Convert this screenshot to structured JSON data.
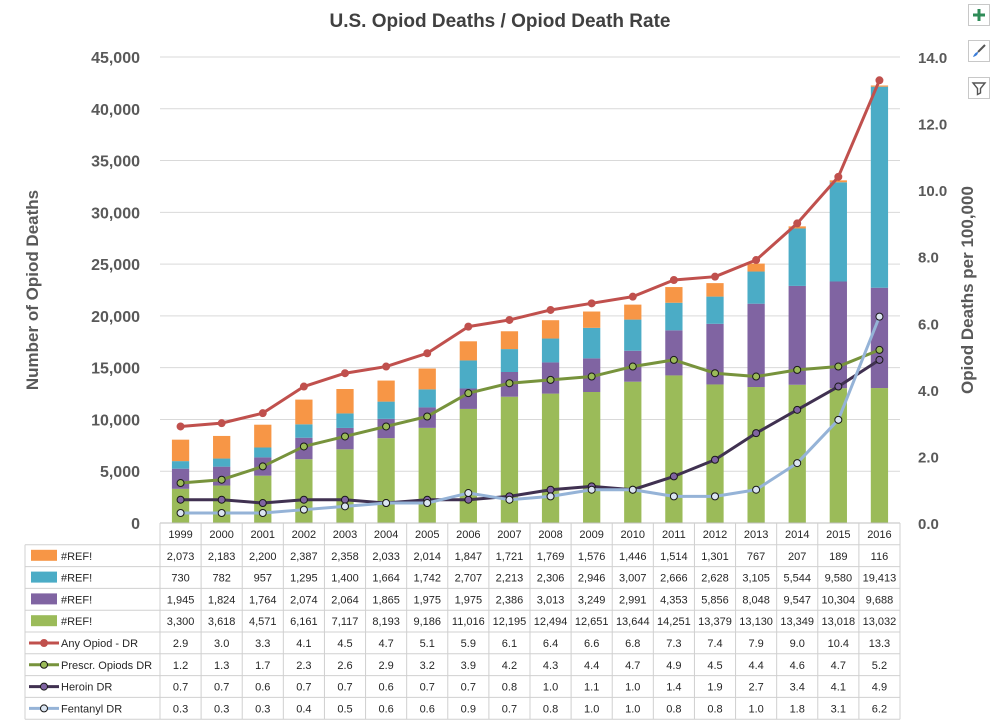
{
  "chart_data": {
    "type": "bar",
    "title": "U.S. Opiod Deaths / Opiod Death Rate",
    "ylabel": "Number of Opiod Deaths",
    "y2label": "Opiod Deaths per 100,000",
    "ylim": [
      0,
      45000
    ],
    "y2lim": [
      0,
      14
    ],
    "yticks": [
      "0",
      "5,000",
      "10,000",
      "15,000",
      "20,000",
      "25,000",
      "30,000",
      "35,000",
      "40,000",
      "45,000"
    ],
    "y2ticks": [
      "0.0",
      "2.0",
      "4.0",
      "6.0",
      "8.0",
      "10.0",
      "12.0",
      "14.0"
    ],
    "categories": [
      "1999",
      "2000",
      "2001",
      "2002",
      "2003",
      "2004",
      "2005",
      "2006",
      "2007",
      "2008",
      "2009",
      "2010",
      "2011",
      "2012",
      "2013",
      "2014",
      "2015",
      "2016"
    ],
    "bar_series": [
      {
        "name": "#REF!",
        "color": "#f79646",
        "values": [
          2073,
          2183,
          2200,
          2387,
          2358,
          2033,
          2014,
          1847,
          1721,
          1769,
          1576,
          1446,
          1514,
          1301,
          767,
          207,
          189,
          116
        ],
        "labels": [
          "2,073",
          "2,183",
          "2,200",
          "2,387",
          "2,358",
          "2,033",
          "2,014",
          "1,847",
          "1,721",
          "1,769",
          "1,576",
          "1,446",
          "1,514",
          "1,301",
          "767",
          "207",
          "189",
          "116"
        ]
      },
      {
        "name": "#REF!",
        "color": "#4bacc6",
        "values": [
          730,
          782,
          957,
          1295,
          1400,
          1664,
          1742,
          2707,
          2213,
          2306,
          2946,
          3007,
          2666,
          2628,
          3105,
          5544,
          9580,
          19413
        ],
        "labels": [
          "730",
          "782",
          "957",
          "1,295",
          "1,400",
          "1,664",
          "1,742",
          "2,707",
          "2,213",
          "2,306",
          "2,946",
          "3,007",
          "2,666",
          "2,628",
          "3,105",
          "5,544",
          "9,580",
          "19,413"
        ]
      },
      {
        "name": "#REF!",
        "color": "#8064a2",
        "values": [
          1945,
          1824,
          1764,
          2074,
          2064,
          1865,
          1975,
          1975,
          2386,
          3013,
          3249,
          2991,
          4353,
          5856,
          8048,
          9547,
          10304,
          9688
        ],
        "labels": [
          "1,945",
          "1,824",
          "1,764",
          "2,074",
          "2,064",
          "1,865",
          "1,975",
          "1,975",
          "2,386",
          "3,013",
          "3,249",
          "2,991",
          "4,353",
          "5,856",
          "8,048",
          "9,547",
          "10,304",
          "9,688"
        ]
      },
      {
        "name": "#REF!",
        "color": "#9bbb59",
        "values": [
          3300,
          3618,
          4571,
          6161,
          7117,
          8193,
          9186,
          11016,
          12195,
          12494,
          12651,
          13644,
          14251,
          13379,
          13130,
          13349,
          13018,
          13032
        ],
        "labels": [
          "3,300",
          "3,618",
          "4,571",
          "6,161",
          "7,117",
          "8,193",
          "9,186",
          "11,016",
          "12,195",
          "12,494",
          "12,651",
          "13,644",
          "14,251",
          "13,379",
          "13,130",
          "13,349",
          "13,018",
          "13,032"
        ]
      }
    ],
    "line_series": [
      {
        "name": "Any Opiod - DR",
        "color": "#c0504d",
        "marker_fill": "#c0504d",
        "values": [
          2.9,
          3.0,
          3.3,
          4.1,
          4.5,
          4.7,
          5.1,
          5.9,
          6.1,
          6.4,
          6.6,
          6.8,
          7.3,
          7.4,
          7.9,
          9.0,
          10.4,
          13.3
        ],
        "labels": [
          "2.9",
          "3.0",
          "3.3",
          "4.1",
          "4.5",
          "4.7",
          "5.1",
          "5.9",
          "6.1",
          "6.4",
          "6.6",
          "6.8",
          "7.3",
          "7.4",
          "7.9",
          "9.0",
          "10.4",
          "13.3"
        ]
      },
      {
        "name": "Prescr. Opiods DR",
        "color": "#77933c",
        "marker_fill": "#9bbb59",
        "values": [
          1.2,
          1.3,
          1.7,
          2.3,
          2.6,
          2.9,
          3.2,
          3.9,
          4.2,
          4.3,
          4.4,
          4.7,
          4.9,
          4.5,
          4.4,
          4.6,
          4.7,
          5.2
        ],
        "labels": [
          "1.2",
          "1.3",
          "1.7",
          "2.3",
          "2.6",
          "2.9",
          "3.2",
          "3.9",
          "4.2",
          "4.3",
          "4.4",
          "4.7",
          "4.9",
          "4.5",
          "4.4",
          "4.6",
          "4.7",
          "5.2"
        ]
      },
      {
        "name": "Heroin DR",
        "color": "#403151",
        "marker_fill": "#8064a2",
        "values": [
          0.7,
          0.7,
          0.6,
          0.7,
          0.7,
          0.6,
          0.7,
          0.7,
          0.8,
          1.0,
          1.1,
          1.0,
          1.4,
          1.9,
          2.7,
          3.4,
          4.1,
          4.9
        ],
        "labels": [
          "0.7",
          "0.7",
          "0.6",
          "0.7",
          "0.7",
          "0.6",
          "0.7",
          "0.7",
          "0.8",
          "1.0",
          "1.1",
          "1.0",
          "1.4",
          "1.9",
          "2.7",
          "3.4",
          "4.1",
          "4.9"
        ]
      },
      {
        "name": "Fentanyl DR",
        "color": "#95b3d7",
        "marker_fill": "#dbe5f1",
        "values": [
          0.3,
          0.3,
          0.3,
          0.4,
          0.5,
          0.6,
          0.6,
          0.9,
          0.7,
          0.8,
          1.0,
          1.0,
          0.8,
          0.8,
          1.0,
          1.8,
          3.1,
          6.2
        ],
        "labels": [
          "0.3",
          "0.3",
          "0.3",
          "0.4",
          "0.5",
          "0.6",
          "0.6",
          "0.9",
          "0.7",
          "0.8",
          "1.0",
          "1.0",
          "0.8",
          "0.8",
          "1.0",
          "1.8",
          "3.1",
          "6.2"
        ]
      }
    ],
    "legend": "data-table"
  },
  "toolbar": {
    "buttons": [
      {
        "icon": "plus-icon"
      },
      {
        "icon": "brush-icon"
      },
      {
        "icon": "filter-icon"
      }
    ]
  }
}
